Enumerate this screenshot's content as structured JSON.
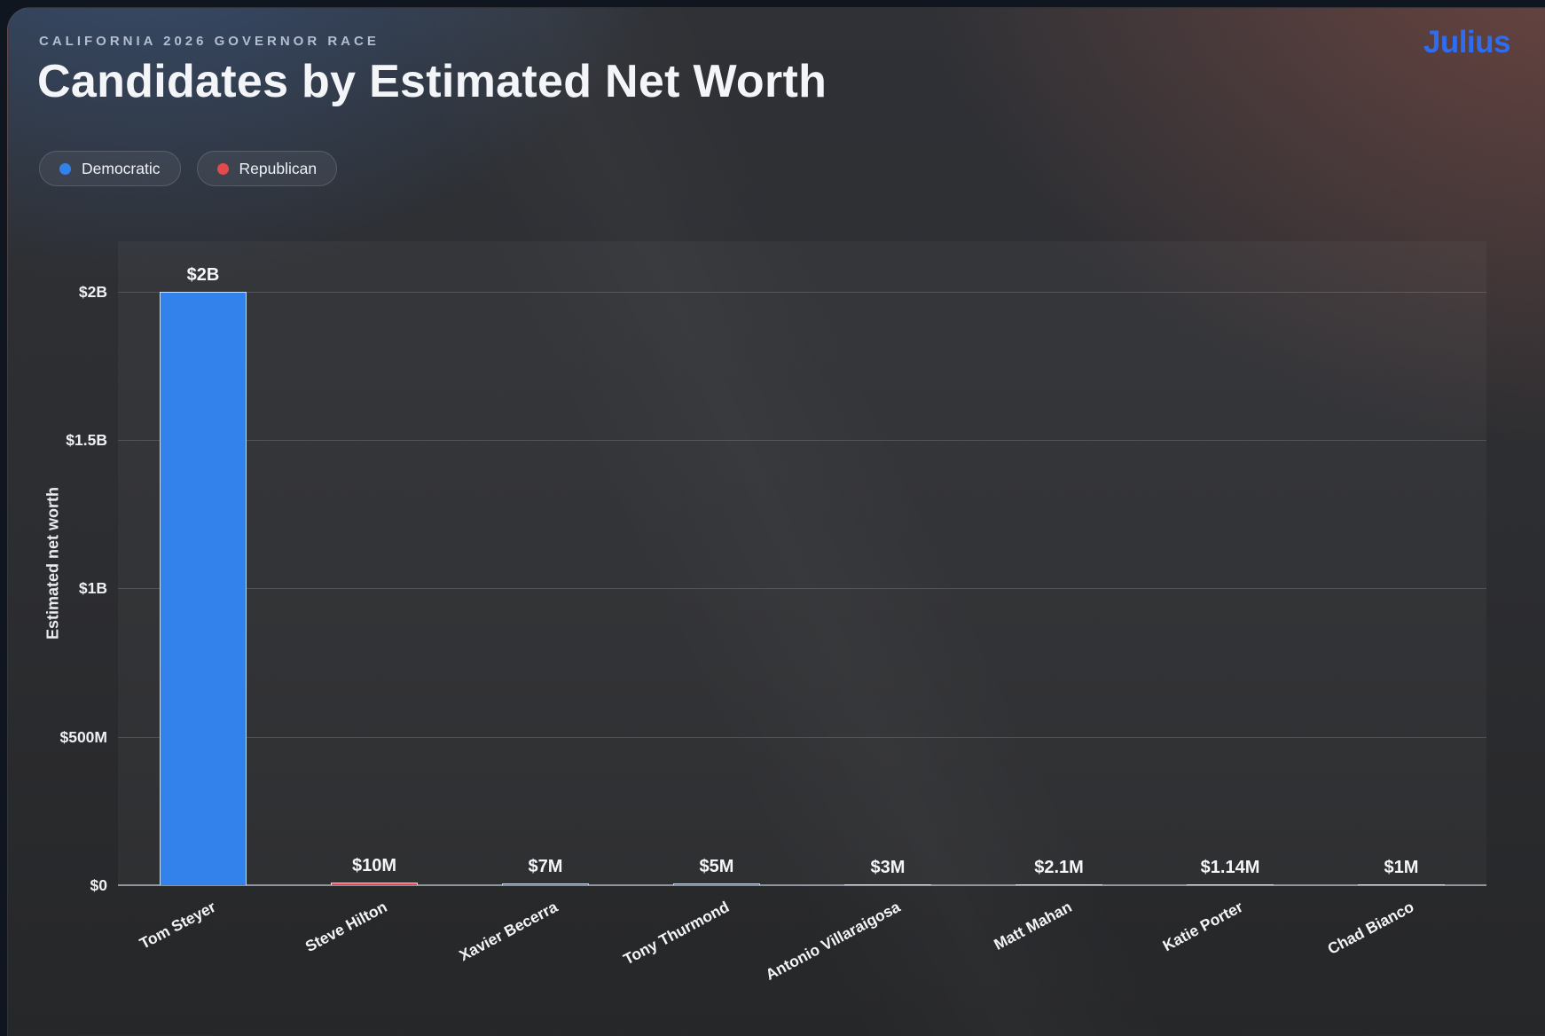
{
  "header": {
    "eyebrow": "CALIFORNIA 2026 GOVERNOR RACE",
    "title": "Candidates by Estimated Net Worth"
  },
  "brand": {
    "name": "Julius",
    "color": "#2E6CF0"
  },
  "legend": [
    {
      "label": "Democratic",
      "color": "#3381EA"
    },
    {
      "label": "Republican",
      "color": "#E5484D"
    }
  ],
  "chart_data": {
    "type": "bar",
    "title": "Candidates by Estimated Net Worth",
    "subtitle": "CALIFORNIA 2026 GOVERNOR RACE",
    "xlabel": "",
    "ylabel": "Estimated net worth",
    "ylim_musd": [
      0,
      2170
    ],
    "grid": "horizontal",
    "legend_position": "top-left",
    "yticks": [
      {
        "label": "$0",
        "value_musd": 0
      },
      {
        "label": "$500M",
        "value_musd": 500
      },
      {
        "label": "$1B",
        "value_musd": 1000
      },
      {
        "label": "$1.5B",
        "value_musd": 1500
      },
      {
        "label": "$2B",
        "value_musd": 2000
      }
    ],
    "categories": [
      "Tom Steyer",
      "Steve Hilton",
      "Xavier Becerra",
      "Tony Thurmond",
      "Antonio Villaraigosa",
      "Matt Mahan",
      "Katie Porter",
      "Chad Bianco"
    ],
    "bars": [
      {
        "candidate": "Tom Steyer",
        "party": "Democratic",
        "value_musd": 2000,
        "value_label": "$2B"
      },
      {
        "candidate": "Steve Hilton",
        "party": "Republican",
        "value_musd": 10,
        "value_label": "$10M"
      },
      {
        "candidate": "Xavier Becerra",
        "party": "Democratic",
        "value_musd": 7,
        "value_label": "$7M"
      },
      {
        "candidate": "Tony Thurmond",
        "party": "Democratic",
        "value_musd": 5,
        "value_label": "$5M"
      },
      {
        "candidate": "Antonio Villaraigosa",
        "party": "Democratic",
        "value_musd": 3,
        "value_label": "$3M"
      },
      {
        "candidate": "Matt Mahan",
        "party": "Democratic",
        "value_musd": 2.1,
        "value_label": "$2.1M"
      },
      {
        "candidate": "Katie Porter",
        "party": "Democratic",
        "value_musd": 1.14,
        "value_label": "$1.14M"
      },
      {
        "candidate": "Chad Bianco",
        "party": "Republican",
        "value_musd": 1,
        "value_label": "$1M"
      }
    ],
    "party_colors": {
      "Democratic": "#3381EA",
      "Republican": "#E5484D"
    },
    "bar_stroke": "#DEE7F2"
  }
}
